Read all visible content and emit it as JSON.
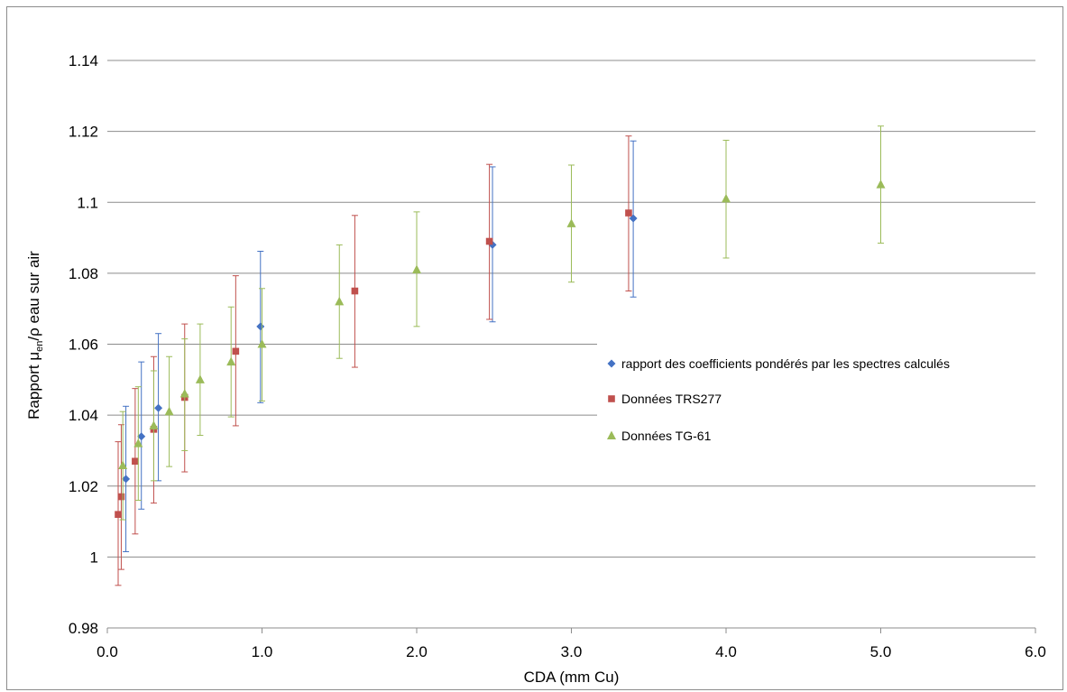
{
  "chart_data": {
    "type": "scatter",
    "xlabel": "CDA (mm Cu)",
    "ylabel": {
      "prefix": "Rapport ",
      "mu": "μ",
      "sub": "en",
      "suffix": "/ρ eau sur air"
    },
    "xlim": [
      0,
      6
    ],
    "ylim": [
      0.98,
      1.14
    ],
    "x_ticks": [
      "0.0",
      "1.0",
      "2.0",
      "3.0",
      "4.0",
      "5.0",
      "6.0"
    ],
    "y_ticks": [
      "0.98",
      "1",
      "1.02",
      "1.04",
      "1.06",
      "1.08",
      "1.1",
      "1.12",
      "1.14"
    ],
    "grid": "horizontal",
    "legend_position": "right",
    "series": [
      {
        "name": "rapport des coefficients pondérés par les spectres calculés",
        "color": "#4472C4",
        "marker": "diamond",
        "points": [
          {
            "x": 0.12,
            "y": 1.022,
            "err_low": 1.0015,
            "err_high": 1.0425
          },
          {
            "x": 0.22,
            "y": 1.034,
            "err_low": 1.0135,
            "err_high": 1.055
          },
          {
            "x": 0.33,
            "y": 1.042,
            "err_low": 1.0215,
            "err_high": 1.063
          },
          {
            "x": 0.99,
            "y": 1.065,
            "err_low": 1.0435,
            "err_high": 1.0862
          },
          {
            "x": 2.49,
            "y": 1.088,
            "err_low": 1.0663,
            "err_high": 1.11
          },
          {
            "x": 3.4,
            "y": 1.0955,
            "err_low": 1.0733,
            "err_high": 1.1173
          }
        ]
      },
      {
        "name": "Données TRS277",
        "color": "#C0504D",
        "marker": "square",
        "points": [
          {
            "x": 0.07,
            "y": 1.012,
            "err_low": 0.992,
            "err_high": 1.0325
          },
          {
            "x": 0.09,
            "y": 1.017,
            "err_low": 0.9965,
            "err_high": 1.0373
          },
          {
            "x": 0.18,
            "y": 1.027,
            "err_low": 1.0065,
            "err_high": 1.0475
          },
          {
            "x": 0.3,
            "y": 1.036,
            "err_low": 1.0152,
            "err_high": 1.0565
          },
          {
            "x": 0.5,
            "y": 1.045,
            "err_low": 1.024,
            "err_high": 1.0657
          },
          {
            "x": 0.83,
            "y": 1.058,
            "err_low": 1.037,
            "err_high": 1.0793
          },
          {
            "x": 1.6,
            "y": 1.075,
            "err_low": 1.0535,
            "err_high": 1.0963
          },
          {
            "x": 2.47,
            "y": 1.089,
            "err_low": 1.067,
            "err_high": 1.1107
          },
          {
            "x": 3.37,
            "y": 1.097,
            "err_low": 1.075,
            "err_high": 1.1187
          }
        ]
      },
      {
        "name": "Données TG-61",
        "color": "#9BBB59",
        "marker": "triangle",
        "points": [
          {
            "x": 0.1,
            "y": 1.0258,
            "err_low": 1.0105,
            "err_high": 1.041
          },
          {
            "x": 0.2,
            "y": 1.032,
            "err_low": 1.016,
            "err_high": 1.048
          },
          {
            "x": 0.3,
            "y": 1.037,
            "err_low": 1.0215,
            "err_high": 1.0525
          },
          {
            "x": 0.4,
            "y": 1.041,
            "err_low": 1.0255,
            "err_high": 1.0565
          },
          {
            "x": 0.5,
            "y": 1.046,
            "err_low": 1.03,
            "err_high": 1.0615
          },
          {
            "x": 0.6,
            "y": 1.05,
            "err_low": 1.0343,
            "err_high": 1.0657
          },
          {
            "x": 0.8,
            "y": 1.055,
            "err_low": 1.0395,
            "err_high": 1.0705
          },
          {
            "x": 1.0,
            "y": 1.06,
            "err_low": 1.044,
            "err_high": 1.0757
          },
          {
            "x": 1.5,
            "y": 1.072,
            "err_low": 1.056,
            "err_high": 1.088
          },
          {
            "x": 2.0,
            "y": 1.081,
            "err_low": 1.065,
            "err_high": 1.0973
          },
          {
            "x": 3.0,
            "y": 1.094,
            "err_low": 1.0775,
            "err_high": 1.1105
          },
          {
            "x": 4.0,
            "y": 1.101,
            "err_low": 1.0843,
            "err_high": 1.1175
          },
          {
            "x": 5.0,
            "y": 1.105,
            "err_low": 1.0885,
            "err_high": 1.1215
          }
        ]
      }
    ]
  }
}
